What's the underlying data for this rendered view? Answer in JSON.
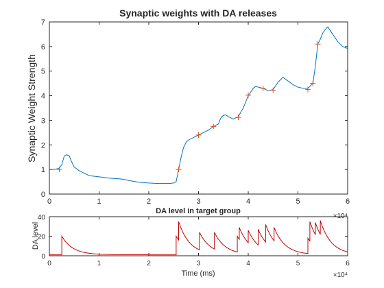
{
  "chart_data": [
    {
      "type": "line",
      "title": "Synaptic weights with DA releases",
      "xlabel": "",
      "ylabel": "Synaptic Weight Strength",
      "xlim": [
        0,
        60000
      ],
      "ylim": [
        0,
        7
      ],
      "xticks": [
        0,
        10000,
        20000,
        30000,
        40000,
        50000,
        60000
      ],
      "xtick_labels": [
        "0",
        "1",
        "2",
        "3",
        "4",
        "5",
        "6"
      ],
      "yticks": [
        0,
        1,
        2,
        3,
        4,
        5,
        6,
        7
      ],
      "ytick_labels": [
        "0",
        "1",
        "2",
        "3",
        "4",
        "5",
        "6",
        "7"
      ],
      "exponent_label": "×10⁴",
      "grid": false,
      "series": [
        {
          "color": "#0072BD",
          "x": [
            0,
            1000,
            2000,
            2500,
            3000,
            3500,
            4000,
            4500,
            5000,
            6000,
            7000,
            8000,
            10000,
            12000,
            14000,
            15000,
            16000,
            18000,
            20000,
            22000,
            24000,
            25000,
            25500,
            26000,
            26500,
            27000,
            27500,
            28000,
            29000,
            30000,
            31000,
            32000,
            33000,
            34000,
            34500,
            35000,
            35500,
            36000,
            37000,
            38000,
            39000,
            40000,
            41000,
            41500,
            42000,
            43000,
            44000,
            45000,
            46000,
            47000,
            48000,
            49000,
            50000,
            51000,
            52000,
            52500,
            53000,
            53500,
            54000,
            54500,
            55000,
            55500,
            56000,
            57000,
            58000,
            59000,
            60000
          ],
          "y": [
            1.0,
            1.0,
            1.05,
            1.2,
            1.55,
            1.6,
            1.55,
            1.3,
            1.1,
            0.95,
            0.85,
            0.75,
            0.7,
            0.65,
            0.62,
            0.6,
            0.55,
            0.48,
            0.45,
            0.43,
            0.43,
            0.45,
            0.5,
            1.0,
            1.5,
            1.9,
            2.1,
            2.2,
            2.3,
            2.4,
            2.5,
            2.6,
            2.75,
            2.85,
            3.1,
            3.2,
            3.22,
            3.15,
            3.05,
            3.15,
            3.5,
            4.0,
            4.3,
            4.38,
            4.35,
            4.3,
            4.2,
            4.25,
            4.55,
            4.75,
            4.6,
            4.45,
            4.35,
            4.3,
            4.3,
            4.4,
            4.5,
            5.2,
            6.1,
            6.3,
            6.55,
            6.7,
            6.8,
            6.5,
            6.2,
            6.0,
            5.92
          ]
        }
      ],
      "markers": {
        "symbol": "+",
        "color": "#D95319",
        "x": [
          2000,
          26000,
          30000,
          33000,
          38000,
          40000,
          43000,
          45000,
          52000,
          53000,
          54000
        ],
        "y": [
          1.0,
          1.0,
          2.4,
          2.75,
          3.12,
          4.02,
          4.3,
          4.22,
          4.25,
          4.5,
          6.1
        ]
      }
    },
    {
      "type": "line",
      "title": "DA level in target group",
      "xlabel": "Time (ms)",
      "ylabel": "DA level",
      "xlim": [
        0,
        60000
      ],
      "ylim": [
        0,
        40
      ],
      "xticks": [
        0,
        10000,
        20000,
        30000,
        40000,
        50000,
        60000
      ],
      "xtick_labels": [
        "0",
        "1",
        "2",
        "3",
        "4",
        "5",
        "6"
      ],
      "yticks": [
        0,
        20,
        40
      ],
      "ytick_labels": [
        "0",
        "20",
        "40"
      ],
      "exponent_label": "×10⁴",
      "grid": false,
      "series": [
        {
          "color": "#C00000",
          "baseline": 1,
          "tau": 2200,
          "pulses": [
            {
              "t": 2500,
              "peak": 20
            },
            {
              "t": 25500,
              "peak": 20
            },
            {
              "t": 26000,
              "peak": 35
            },
            {
              "t": 30200,
              "peak": 24
            },
            {
              "t": 33200,
              "peak": 24
            },
            {
              "t": 37800,
              "peak": 20
            },
            {
              "t": 38200,
              "peak": 29
            },
            {
              "t": 40000,
              "peak": 26
            },
            {
              "t": 42000,
              "peak": 27
            },
            {
              "t": 43500,
              "peak": 32
            },
            {
              "t": 45200,
              "peak": 29
            },
            {
              "t": 52000,
              "peak": 18
            },
            {
              "t": 52400,
              "peak": 35
            },
            {
              "t": 53500,
              "peak": 34
            },
            {
              "t": 54500,
              "peak": 36
            }
          ]
        }
      ]
    }
  ]
}
